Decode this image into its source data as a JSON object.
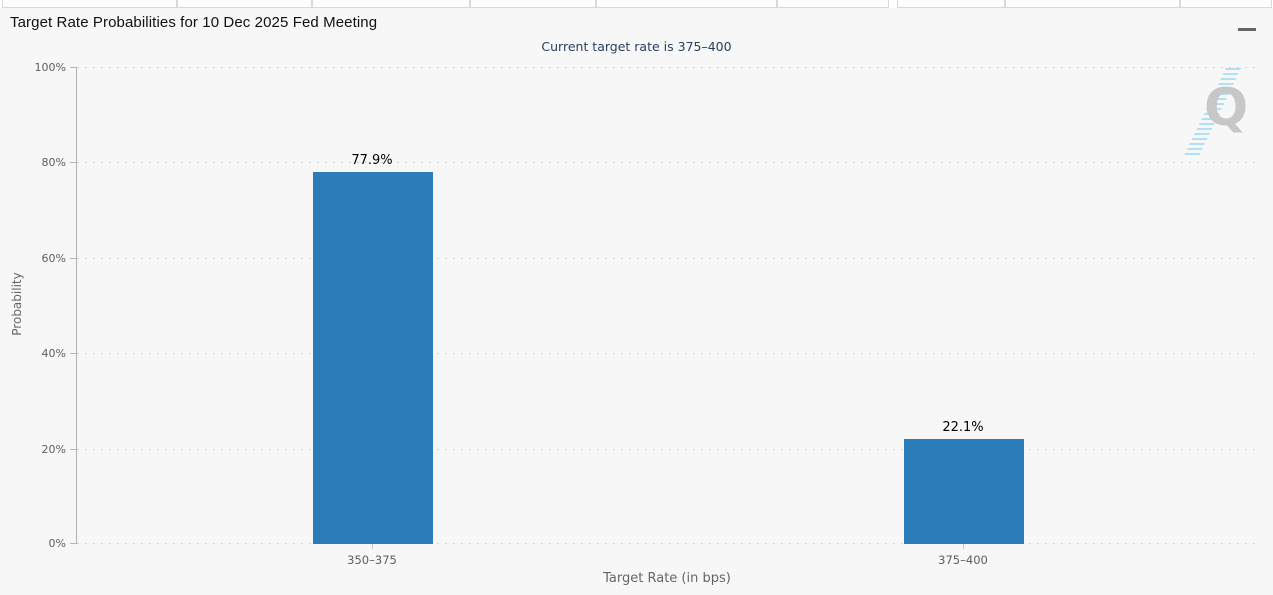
{
  "header": {
    "title": "Target Rate Probabilities for 10 Dec 2025 Fed Meeting",
    "menu_icon": "hamburger-icon"
  },
  "watermark": {
    "letter": "Q"
  },
  "chart_data": {
    "type": "bar",
    "title": "Target Rate Probabilities for 10 Dec 2025 Fed Meeting",
    "subtitle": "Current target rate is 375–400",
    "categories": [
      "350–375",
      "375–400"
    ],
    "values": [
      77.9,
      22.1
    ],
    "data_labels": [
      "77.9%",
      "22.1%"
    ],
    "xlabel": "Target Rate (in bps)",
    "ylabel": "Probability",
    "ylim": [
      0,
      100
    ],
    "yticks": [
      0,
      20,
      40,
      60,
      80,
      100
    ],
    "ytick_labels": [
      "0%",
      "20%",
      "40%",
      "60%",
      "80%",
      "100%"
    ],
    "grid": "horizontal-dotted",
    "legend": "none",
    "colors": {
      "bar": "#2b7cb8",
      "subtitle_text": "#2a3f5f",
      "axis_text": "#5e5e5e",
      "data_label_text": "#000000"
    }
  }
}
